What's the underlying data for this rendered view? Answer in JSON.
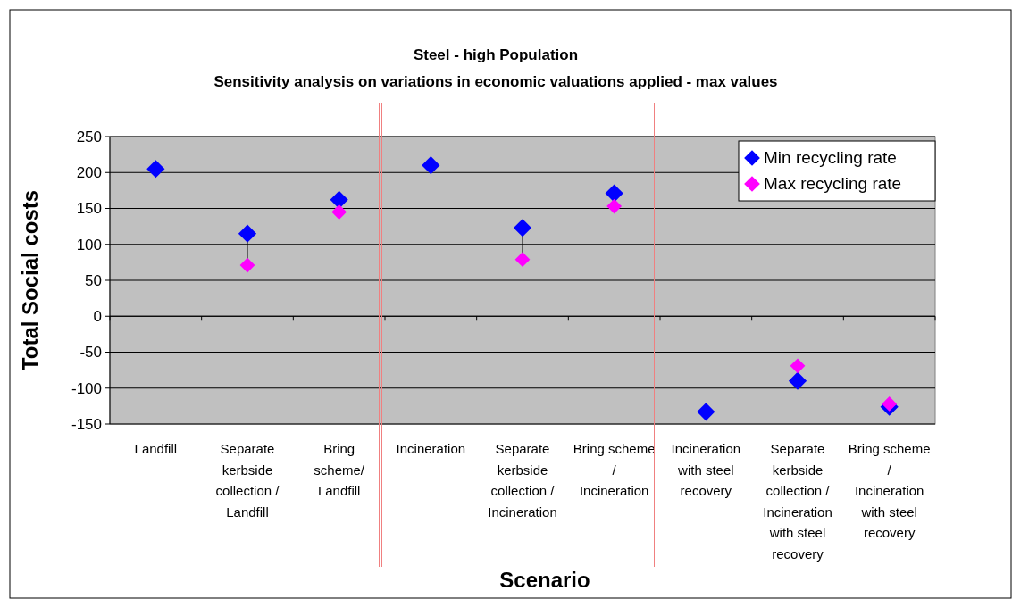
{
  "chart_data": {
    "type": "scatter",
    "title": "Steel - high Population",
    "subtitle": "Sensitivity analysis on variations in economic valuations applied - max values",
    "xlabel": "Scenario",
    "ylabel": "Total Social costs",
    "categories": [
      "Landfill",
      "Separate kerbside collection / Landfill",
      "Bring scheme/ Landfill",
      "Incineration",
      "Separate kerbside collection / Incineration",
      "Bring scheme / Incineration",
      "Incineration with steel recovery",
      "Separate kerbside collection / Incineration with steel recovery",
      "Bring scheme / Incineration with steel recovery"
    ],
    "series": [
      {
        "name": "Min recycling rate",
        "color": "#0000ff",
        "values": [
          205,
          115,
          162,
          210,
          123,
          171,
          -133,
          -90,
          -126
        ]
      },
      {
        "name": "Max recycling rate",
        "color": "#ff00ff",
        "values": [
          null,
          71,
          145,
          null,
          79,
          153,
          null,
          -69,
          -122
        ]
      }
    ],
    "ylim": [
      -150,
      250
    ],
    "yticks": [
      -150,
      -100,
      -50,
      0,
      50,
      100,
      150,
      200,
      250
    ],
    "grid": "y",
    "legend": "top right",
    "marker": "diamond"
  }
}
